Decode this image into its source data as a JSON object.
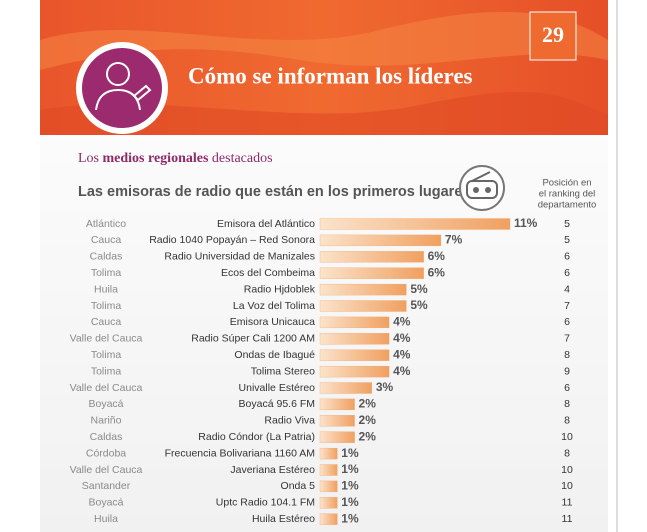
{
  "page_number": "29",
  "header_title": "Cómo se informan los líderes",
  "section": {
    "before": "Los ",
    "bold": "medios regionales",
    "after": " destacados"
  },
  "chart_data": {
    "type": "bar",
    "orientation": "horizontal",
    "title": "Las emisoras de radio que están en los primeros lugares",
    "rank_header": [
      "Posición en",
      "el ranking del",
      "departamento"
    ],
    "color": "#f0a060",
    "xlim": [
      0,
      11
    ],
    "departments": [
      "Atlántico",
      "Cauca",
      "Caldas",
      "Tolima",
      "Huila",
      "Tolima",
      "Cauca",
      "Valle del Cauca",
      "Tolima",
      "Tolima",
      "Valle del Cauca",
      "Boyacá",
      "Nariño",
      "Caldas",
      "Córdoba",
      "Valle del Cauca",
      "Santander",
      "Boyacá",
      "Huila"
    ],
    "categories": [
      "Emisora del Atlántico",
      "Radio 1040 Popayán – Red Sonora",
      "Radio Universidad de Manizales",
      "Ecos del Combeima",
      "Radio Hjdoblek",
      "La Voz del Tolima",
      "Emisora Unicauca",
      "Radio Súper Cali 1200 AM",
      "Ondas de Ibagué",
      "Tolima Stereo",
      "Univalle Estéreo",
      "Boyacá 95.6 FM",
      "Radio Viva",
      "Radio Cóndor (La Patria)",
      "Frecuencia Bolivariana 1160 AM",
      "Javeriana Estéreo",
      "Onda 5",
      "Uptc Radio 104.1 FM",
      "Huila Estéreo"
    ],
    "values": [
      11,
      7,
      6,
      6,
      5,
      5,
      4,
      4,
      4,
      4,
      3,
      2,
      2,
      2,
      1,
      1,
      1,
      1,
      1
    ],
    "value_labels": [
      "11%",
      "7%",
      "6%",
      "6%",
      "5%",
      "5%",
      "4%",
      "4%",
      "4%",
      "4%",
      "3%",
      "2%",
      "2%",
      "2%",
      "1%",
      "1%",
      "1%",
      "1%",
      "1%"
    ],
    "ranks": [
      5,
      5,
      6,
      6,
      4,
      7,
      6,
      7,
      8,
      9,
      6,
      8,
      8,
      10,
      8,
      10,
      10,
      11,
      11
    ]
  }
}
